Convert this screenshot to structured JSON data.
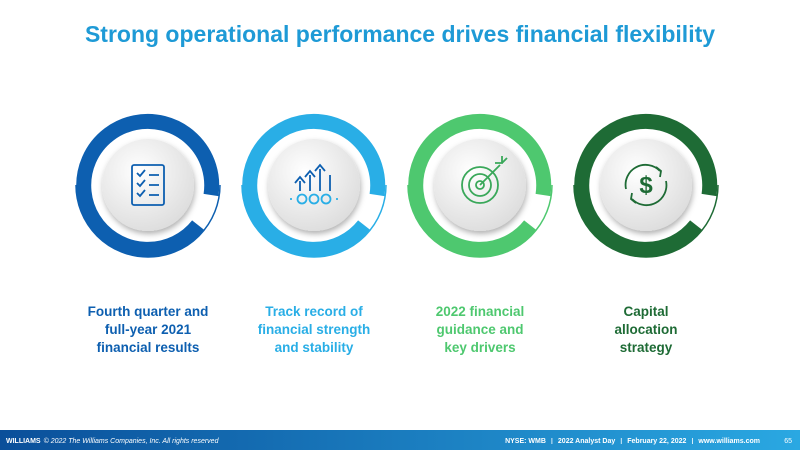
{
  "title": "Strong operational performance drives financial flexibility",
  "items": [
    {
      "lines": [
        "Fourth quarter and",
        "full-year 2021",
        "financial results"
      ]
    },
    {
      "lines": [
        "Track record of",
        "financial strength",
        "and stability"
      ]
    },
    {
      "lines": [
        "2022 financial",
        "guidance and",
        "key drivers"
      ]
    },
    {
      "lines": [
        "Capital",
        "allocation",
        "strategy"
      ]
    }
  ],
  "footer": {
    "brand": "WILLIAMS",
    "copyright": "© 2022 The Williams Companies, Inc. All rights reserved",
    "info": [
      "NYSE: WMB",
      "2022 Analyst Day",
      "February 22, 2022",
      "www.williams.com"
    ],
    "page": "65"
  }
}
